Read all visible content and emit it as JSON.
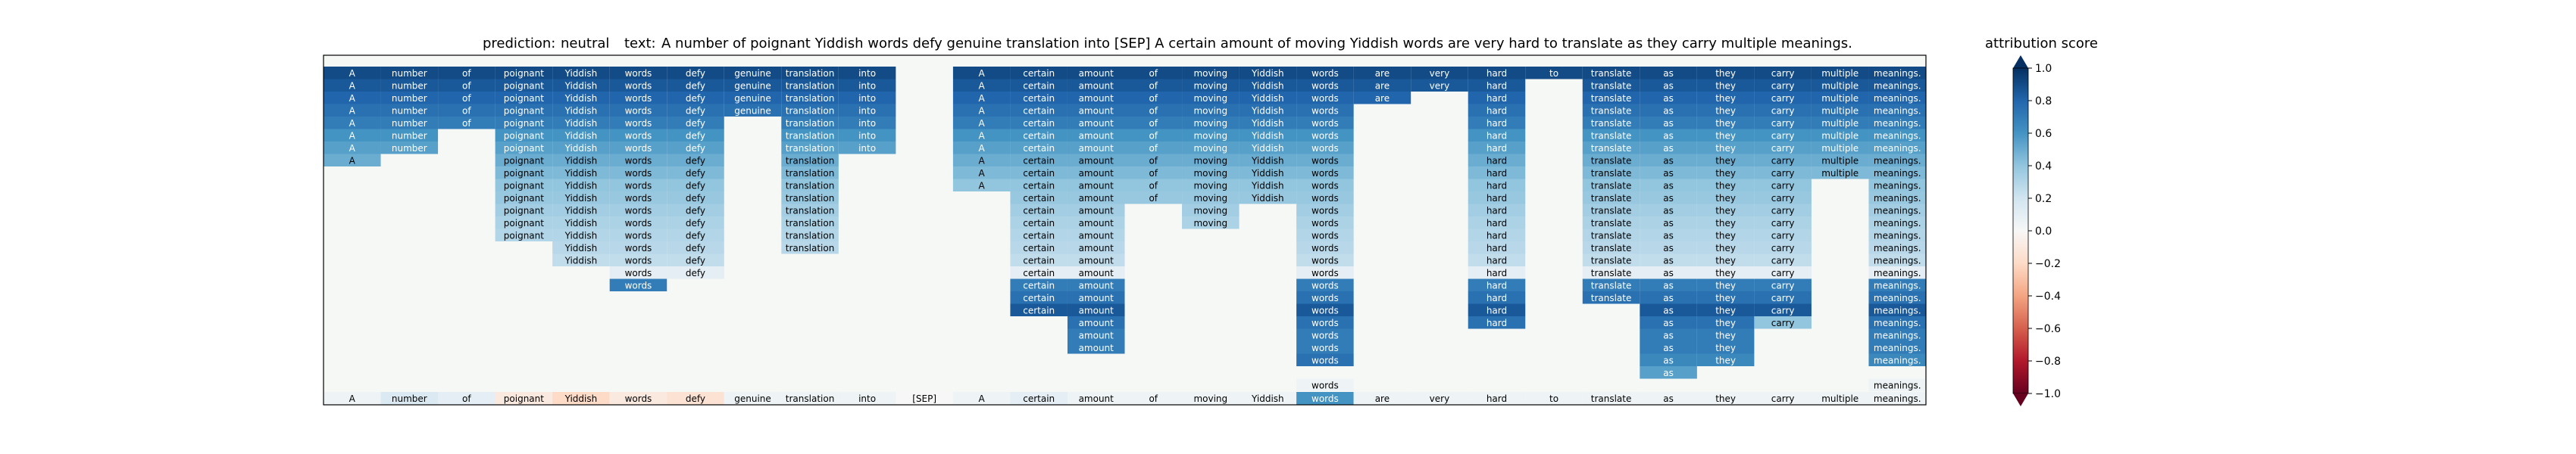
{
  "chart_data": {
    "type": "heatmap",
    "prediction_label": "prediction:",
    "prediction_value": "neutral",
    "text_label": "text:",
    "text_value": "A number of poignant Yiddish words defy genuine translation into [SEP] A certain amount of moving Yiddish words are very hard to translate as they carry multiple meanings.",
    "colorbar_title": "attribution score",
    "colorbar_ticks": [
      "1.0",
      "0.8",
      "0.6",
      "0.4",
      "0.2",
      "0.0",
      "−0.2",
      "−0.4",
      "−0.6",
      "−0.8",
      "−1.0"
    ],
    "colorbar_tick_values": [
      1.0,
      0.8,
      0.6,
      0.4,
      0.2,
      0.0,
      -0.2,
      -0.4,
      -0.6,
      -0.8,
      -1.0
    ],
    "value_range": [
      -1,
      1
    ],
    "tokens": [
      "A",
      "number",
      "of",
      "poignant",
      "Yiddish",
      "words",
      "defy",
      "genuine",
      "translation",
      "into",
      "[SEP]",
      "A",
      "certain",
      "amount",
      "of",
      "moving",
      "Yiddish",
      "words",
      "are",
      "very",
      "hard",
      "to",
      "translate",
      "as",
      "they",
      "carry",
      "multiple",
      "meanings."
    ],
    "bottom_row_values": [
      0.05,
      0.15,
      0.1,
      -0.1,
      -0.2,
      -0.1,
      -0.15,
      0.05,
      0.05,
      0.05,
      0.0,
      0.05,
      0.1,
      0.05,
      0.05,
      0.05,
      0.05,
      0.6,
      0.05,
      0.05,
      0.05,
      0.05,
      0.05,
      0.05,
      0.05,
      0.05,
      0.05,
      0.05
    ],
    "rows": [
      [
        0.9,
        0.9,
        0.9,
        0.9,
        0.9,
        0.9,
        0.9,
        0.9,
        0.9,
        0.9,
        null,
        0.9,
        0.9,
        0.9,
        0.9,
        0.9,
        0.9,
        0.9,
        0.9,
        0.9,
        0.9,
        0.9,
        0.9,
        0.9,
        0.9,
        0.9,
        0.9,
        0.9
      ],
      [
        0.85,
        0.85,
        0.85,
        0.85,
        0.85,
        0.85,
        0.85,
        0.85,
        0.85,
        0.85,
        null,
        0.85,
        0.85,
        0.85,
        0.85,
        0.85,
        0.85,
        0.85,
        0.85,
        0.85,
        0.85,
        null,
        0.85,
        0.85,
        0.85,
        0.85,
        0.85,
        0.85
      ],
      [
        0.8,
        0.8,
        0.8,
        0.8,
        0.8,
        0.8,
        0.8,
        0.8,
        0.8,
        0.8,
        null,
        0.8,
        0.8,
        0.8,
        0.8,
        0.8,
        0.8,
        0.8,
        0.8,
        null,
        0.8,
        null,
        0.8,
        0.8,
        0.8,
        0.8,
        0.8,
        0.8
      ],
      [
        0.75,
        0.75,
        0.75,
        0.75,
        0.75,
        0.75,
        0.75,
        0.75,
        0.75,
        0.75,
        null,
        0.75,
        0.75,
        0.75,
        0.75,
        0.75,
        0.75,
        0.75,
        null,
        null,
        0.75,
        null,
        0.75,
        0.75,
        0.75,
        0.75,
        0.75,
        0.75
      ],
      [
        0.7,
        0.7,
        0.7,
        0.7,
        0.7,
        0.7,
        0.7,
        null,
        0.7,
        0.7,
        null,
        0.7,
        0.7,
        0.7,
        0.7,
        0.7,
        0.7,
        0.7,
        null,
        null,
        0.7,
        null,
        0.7,
        0.7,
        0.7,
        0.7,
        0.7,
        0.7
      ],
      [
        0.6,
        0.6,
        null,
        0.6,
        0.6,
        0.6,
        0.6,
        null,
        0.6,
        0.6,
        null,
        0.6,
        0.6,
        0.6,
        0.6,
        0.6,
        0.6,
        0.6,
        null,
        null,
        0.6,
        null,
        0.6,
        0.6,
        0.6,
        0.6,
        0.6,
        0.6
      ],
      [
        0.55,
        0.55,
        null,
        0.55,
        0.55,
        0.55,
        0.55,
        null,
        0.55,
        0.55,
        null,
        0.55,
        0.55,
        0.55,
        0.55,
        0.55,
        0.55,
        0.55,
        null,
        null,
        0.55,
        null,
        0.55,
        0.55,
        0.55,
        0.55,
        0.55,
        0.55
      ],
      [
        0.5,
        null,
        null,
        0.5,
        0.5,
        0.5,
        0.5,
        null,
        0.5,
        null,
        null,
        0.5,
        0.5,
        0.5,
        0.5,
        0.5,
        0.5,
        0.5,
        null,
        null,
        0.5,
        null,
        0.5,
        0.5,
        0.5,
        0.5,
        0.5,
        0.5
      ],
      [
        null,
        null,
        null,
        0.45,
        0.45,
        0.45,
        0.45,
        null,
        0.45,
        null,
        null,
        0.45,
        0.45,
        0.45,
        0.45,
        0.45,
        0.45,
        0.45,
        null,
        null,
        0.45,
        null,
        0.45,
        0.45,
        0.45,
        0.45,
        0.45,
        0.45
      ],
      [
        null,
        null,
        null,
        0.4,
        0.4,
        0.4,
        0.4,
        null,
        0.4,
        null,
        null,
        0.4,
        0.4,
        0.4,
        0.4,
        0.4,
        0.4,
        0.4,
        null,
        null,
        0.4,
        null,
        0.4,
        0.4,
        0.4,
        0.4,
        null,
        0.4
      ],
      [
        null,
        null,
        null,
        0.38,
        0.38,
        0.38,
        0.38,
        null,
        0.38,
        null,
        null,
        null,
        0.38,
        0.38,
        0.38,
        0.38,
        0.38,
        0.38,
        null,
        null,
        0.38,
        null,
        0.38,
        0.38,
        0.38,
        0.38,
        null,
        0.38
      ],
      [
        null,
        null,
        null,
        0.35,
        0.35,
        0.35,
        0.35,
        null,
        0.35,
        null,
        null,
        null,
        0.35,
        0.35,
        null,
        0.35,
        null,
        0.35,
        null,
        null,
        0.35,
        null,
        0.35,
        0.35,
        0.35,
        0.35,
        null,
        0.35
      ],
      [
        null,
        null,
        null,
        0.32,
        0.32,
        0.32,
        0.32,
        null,
        0.32,
        null,
        null,
        null,
        0.32,
        0.32,
        null,
        0.32,
        null,
        0.32,
        null,
        null,
        0.32,
        null,
        0.32,
        0.32,
        0.32,
        0.32,
        null,
        0.32
      ],
      [
        null,
        null,
        null,
        0.3,
        0.3,
        0.3,
        0.3,
        null,
        0.3,
        null,
        null,
        null,
        0.3,
        0.3,
        null,
        null,
        null,
        0.3,
        null,
        null,
        0.3,
        null,
        0.3,
        0.3,
        0.3,
        0.3,
        null,
        0.3
      ],
      [
        null,
        null,
        null,
        null,
        0.28,
        0.28,
        0.28,
        null,
        0.28,
        null,
        null,
        null,
        0.28,
        0.28,
        null,
        null,
        null,
        0.28,
        null,
        null,
        0.28,
        null,
        0.28,
        0.28,
        0.28,
        0.28,
        null,
        0.28
      ],
      [
        null,
        null,
        null,
        null,
        0.25,
        0.25,
        0.25,
        null,
        null,
        null,
        null,
        null,
        0.25,
        0.25,
        null,
        null,
        null,
        0.25,
        null,
        null,
        0.25,
        null,
        0.25,
        0.25,
        0.25,
        0.25,
        null,
        0.25
      ],
      [
        null,
        null,
        null,
        null,
        null,
        0.1,
        0.1,
        null,
        null,
        null,
        null,
        null,
        0.1,
        0.1,
        null,
        null,
        null,
        0.1,
        null,
        null,
        0.1,
        null,
        0.1,
        0.1,
        0.1,
        0.1,
        null,
        0.1
      ],
      [
        null,
        null,
        null,
        null,
        null,
        0.7,
        null,
        null,
        null,
        null,
        null,
        null,
        0.7,
        0.7,
        null,
        null,
        null,
        0.7,
        null,
        null,
        0.7,
        null,
        0.7,
        0.7,
        0.7,
        0.7,
        null,
        0.7
      ],
      [
        null,
        null,
        null,
        null,
        null,
        null,
        null,
        null,
        null,
        null,
        null,
        null,
        0.75,
        0.75,
        null,
        null,
        null,
        0.75,
        null,
        null,
        0.75,
        null,
        0.75,
        0.75,
        0.75,
        0.75,
        null,
        0.75
      ],
      [
        null,
        null,
        null,
        null,
        null,
        null,
        null,
        null,
        null,
        null,
        null,
        null,
        0.85,
        0.85,
        null,
        null,
        null,
        0.85,
        null,
        null,
        0.85,
        null,
        null,
        0.85,
        0.85,
        0.85,
        null,
        0.85
      ],
      [
        null,
        null,
        null,
        null,
        null,
        null,
        null,
        null,
        null,
        null,
        null,
        null,
        null,
        0.75,
        null,
        null,
        null,
        0.75,
        null,
        null,
        0.75,
        null,
        null,
        0.75,
        0.75,
        0.4,
        null,
        0.75
      ],
      [
        null,
        null,
        null,
        null,
        null,
        null,
        null,
        null,
        null,
        null,
        null,
        null,
        null,
        0.7,
        null,
        null,
        null,
        0.7,
        null,
        null,
        null,
        null,
        null,
        0.7,
        0.7,
        null,
        null,
        0.7
      ],
      [
        null,
        null,
        null,
        null,
        null,
        null,
        null,
        null,
        null,
        null,
        null,
        null,
        null,
        0.7,
        null,
        null,
        null,
        0.7,
        null,
        null,
        null,
        null,
        null,
        0.7,
        0.7,
        null,
        null,
        0.7
      ],
      [
        null,
        null,
        null,
        null,
        null,
        null,
        null,
        null,
        null,
        null,
        null,
        null,
        null,
        null,
        null,
        null,
        null,
        0.75,
        null,
        null,
        null,
        null,
        null,
        0.65,
        0.65,
        null,
        null,
        0.65
      ],
      [
        null,
        null,
        null,
        null,
        null,
        null,
        null,
        null,
        null,
        null,
        null,
        null,
        null,
        null,
        null,
        null,
        null,
        null,
        null,
        null,
        null,
        null,
        null,
        0.55,
        null,
        null,
        null,
        null
      ],
      [
        null,
        null,
        null,
        null,
        null,
        null,
        null,
        null,
        null,
        null,
        null,
        null,
        null,
        null,
        null,
        null,
        null,
        0.05,
        null,
        null,
        null,
        null,
        null,
        null,
        null,
        null,
        null,
        0.05
      ]
    ]
  }
}
